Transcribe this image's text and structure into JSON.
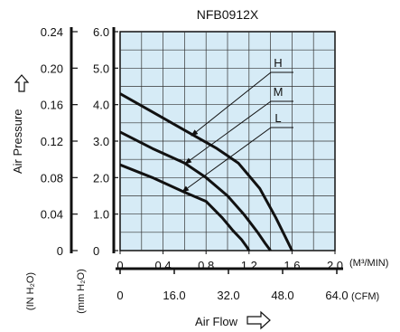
{
  "chart_data": {
    "type": "line",
    "title": "NFB0912X",
    "xlabel": "Air Flow",
    "ylabel": "Air Pressure",
    "x_unit_top": "(M³/MIN)",
    "x_unit_bottom": "(CFM)",
    "y_unit_outer": "(IN H₂O)",
    "y_unit_inner": "(mm H₂O)",
    "xlim": [
      0,
      2.0
    ],
    "ylim": [
      0,
      6.0
    ],
    "x_ticks": [
      "0",
      "0.4",
      "0.8",
      "1.2",
      "1.6",
      "2.0"
    ],
    "x_ticks_cfm": [
      "0",
      "16.0",
      "32.0",
      "48.0",
      "64.0"
    ],
    "y_ticks_mm": [
      "0",
      "1.0",
      "2.0",
      "3.0",
      "4.0",
      "5.0",
      "6.0"
    ],
    "y_ticks_in": [
      "0",
      "0.04",
      "0.08",
      "0.12",
      "0.16",
      "0.20",
      "0.24"
    ],
    "grid": true,
    "series": [
      {
        "name": "H",
        "x": [
          0,
          0.3,
          0.6,
          0.9,
          1.1,
          1.3,
          1.45,
          1.55,
          1.6
        ],
        "y": [
          4.3,
          3.8,
          3.3,
          2.8,
          2.4,
          1.7,
          0.9,
          0.3,
          0
        ]
      },
      {
        "name": "M",
        "x": [
          0,
          0.3,
          0.6,
          0.8,
          1.0,
          1.15,
          1.28,
          1.35,
          1.4
        ],
        "y": [
          3.25,
          2.8,
          2.4,
          2.0,
          1.5,
          1.0,
          0.5,
          0.2,
          0
        ]
      },
      {
        "name": "L",
        "x": [
          0,
          0.3,
          0.6,
          0.8,
          0.95,
          1.05,
          1.13,
          1.18,
          1.2
        ],
        "y": [
          2.35,
          2.0,
          1.6,
          1.35,
          0.9,
          0.55,
          0.3,
          0.1,
          0
        ]
      }
    ],
    "colors": {
      "plot_bg": "#d6ebf6",
      "grid": "#333333",
      "curve": "#111111"
    }
  }
}
